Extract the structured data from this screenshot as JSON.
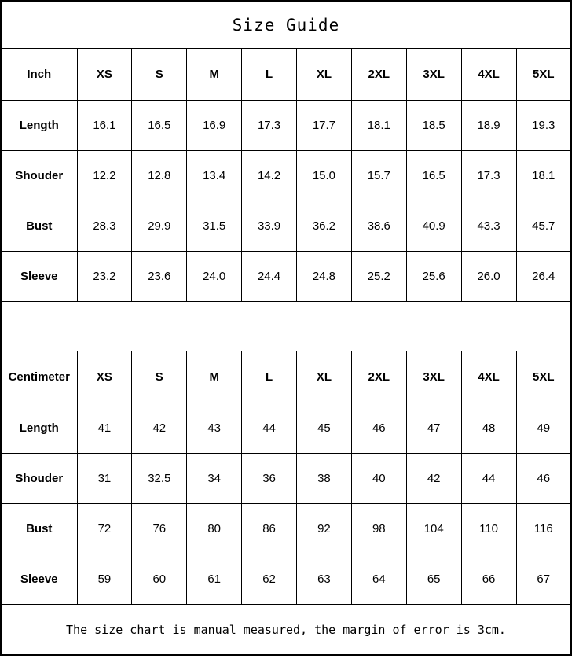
{
  "title": "Size Guide",
  "footer_note": "The size chart is manual measured, the margin of error is 3cm.",
  "chart_data": {
    "type": "table",
    "title": "Size Guide",
    "tables": [
      {
        "unit_label": "Inch",
        "columns": [
          "XS",
          "S",
          "M",
          "L",
          "XL",
          "2XL",
          "3XL",
          "4XL",
          "5XL"
        ],
        "rows": [
          {
            "label": "Length",
            "values": [
              "16.1",
              "16.5",
              "16.9",
              "17.3",
              "17.7",
              "18.1",
              "18.5",
              "18.9",
              "19.3"
            ]
          },
          {
            "label": "Shouder",
            "values": [
              "12.2",
              "12.8",
              "13.4",
              "14.2",
              "15.0",
              "15.7",
              "16.5",
              "17.3",
              "18.1"
            ]
          },
          {
            "label": "Bust",
            "values": [
              "28.3",
              "29.9",
              "31.5",
              "33.9",
              "36.2",
              "38.6",
              "40.9",
              "43.3",
              "45.7"
            ]
          },
          {
            "label": "Sleeve",
            "values": [
              "23.2",
              "23.6",
              "24.0",
              "24.4",
              "24.8",
              "25.2",
              "25.6",
              "26.0",
              "26.4"
            ]
          }
        ]
      },
      {
        "unit_label": "Centimeter",
        "columns": [
          "XS",
          "S",
          "M",
          "L",
          "XL",
          "2XL",
          "3XL",
          "4XL",
          "5XL"
        ],
        "rows": [
          {
            "label": "Length",
            "values": [
              "41",
              "42",
              "43",
              "44",
              "45",
              "46",
              "47",
              "48",
              "49"
            ]
          },
          {
            "label": "Shouder",
            "values": [
              "31",
              "32.5",
              "34",
              "36",
              "38",
              "40",
              "42",
              "44",
              "46"
            ]
          },
          {
            "label": "Bust",
            "values": [
              "72",
              "76",
              "80",
              "86",
              "92",
              "98",
              "104",
              "110",
              "116"
            ]
          },
          {
            "label": "Sleeve",
            "values": [
              "59",
              "60",
              "61",
              "62",
              "63",
              "64",
              "65",
              "66",
              "67"
            ]
          }
        ]
      }
    ],
    "colors": {
      "border": "#000000",
      "background": "#ffffff",
      "text": "#000000"
    }
  }
}
